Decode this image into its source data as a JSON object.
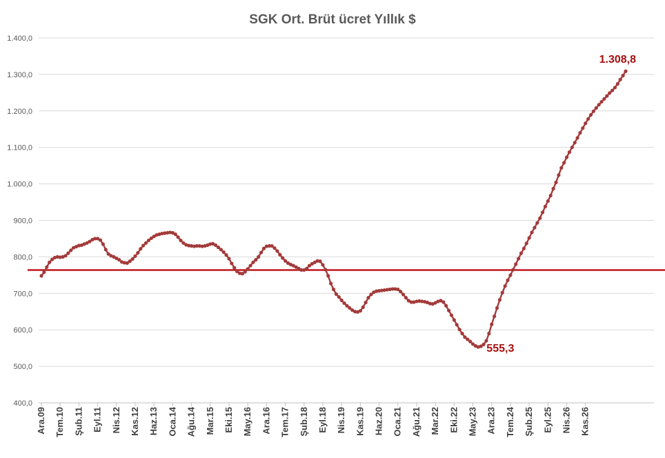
{
  "chart_data": {
    "type": "line",
    "title": "SGK Ort. Brüt ücret Yıllık  $",
    "xlabel": "",
    "ylabel": "",
    "ylim": [
      400,
      1400
    ],
    "y_ticks": [
      "400,0",
      "500,0",
      "600,0",
      "700,0",
      "800,0",
      "900,0",
      "1.000,0",
      "1.100,0",
      "1.200,0",
      "1.300,0",
      "1.400,0"
    ],
    "x_ticks": [
      "Ara.09",
      "Tem.10",
      "Şub.11",
      "Eyl.11",
      "Nis.12",
      "Kas.12",
      "Haz.13",
      "Oca.14",
      "Ağu.14",
      "Mar.15",
      "Eki.15",
      "May.16",
      "Ara.16",
      "Tem.17",
      "Şub.18",
      "Eyl.18",
      "Nis.19",
      "Kas.19",
      "Haz.20",
      "Oca.21",
      "Ağu.21",
      "Mar.22",
      "Eki.22",
      "May.23",
      "Ara.23",
      "Tem.24",
      "Şub.25",
      "Eyl.25",
      "Nis.26",
      "Kas.26"
    ],
    "grid": true,
    "legend": "none",
    "colors": {
      "series": "#a33a3a",
      "reference": "#c0171b",
      "label": "#a50f0f",
      "text": "#595959"
    },
    "reference_line": {
      "value": 764
    },
    "data_labels": [
      {
        "x": "Eki.22",
        "value": 555.3,
        "text": "555,3",
        "color": "#a50f0f"
      },
      {
        "x": "Nis.26",
        "value": 1308.8,
        "text": "1.308,8",
        "color": "#a50f0f"
      }
    ],
    "series": [
      {
        "values": [
          748,
          758,
          772,
          785,
          793,
          798,
          800,
          799,
          800,
          803,
          810,
          818,
          825,
          828,
          831,
          832,
          835,
          838,
          842,
          847,
          850,
          850,
          846,
          835,
          820,
          808,
          803,
          800,
          796,
          792,
          786,
          784,
          783,
          788,
          794,
          802,
          811,
          822,
          831,
          838,
          845,
          851,
          856,
          860,
          862,
          864,
          865,
          866,
          867,
          866,
          862,
          854,
          845,
          838,
          833,
          831,
          830,
          829,
          830,
          830,
          829,
          830,
          832,
          835,
          836,
          832,
          826,
          820,
          813,
          805,
          795,
          782,
          770,
          760,
          755,
          754,
          759,
          767,
          776,
          785,
          792,
          800,
          812,
          823,
          829,
          830,
          830,
          824,
          816,
          806,
          797,
          789,
          783,
          779,
          776,
          772,
          768,
          764,
          764,
          768,
          776,
          781,
          785,
          789,
          788,
          778,
          765,
          748,
          727,
          711,
          698,
          690,
          681,
          673,
          666,
          660,
          654,
          650,
          649,
          652,
          662,
          675,
          688,
          697,
          703,
          706,
          707,
          708,
          709,
          710,
          711,
          712,
          712,
          711,
          705,
          697,
          688,
          680,
          676,
          676,
          678,
          679,
          678,
          677,
          675,
          672,
          671,
          674,
          678,
          680,
          676,
          666,
          653,
          640,
          627,
          614,
          601,
          590,
          580,
          574,
          568,
          561,
          556,
          553,
          555,
          560,
          570,
          590,
          615,
          637,
          660,
          682,
          702,
          720,
          736,
          750,
          765,
          780,
          795,
          810,
          823,
          837,
          852,
          867,
          880,
          893,
          906,
          922,
          938,
          953,
          968,
          987,
          1004,
          1024,
          1044,
          1058,
          1073,
          1087,
          1100,
          1113,
          1126,
          1140,
          1153,
          1166,
          1178,
          1189,
          1199,
          1208,
          1217,
          1225,
          1233,
          1241,
          1249,
          1256,
          1264,
          1274,
          1286,
          1297,
          1308.8
        ]
      }
    ]
  }
}
